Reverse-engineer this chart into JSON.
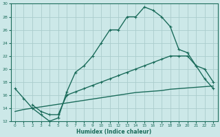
{
  "xlabel": "Humidex (Indice chaleur)",
  "bg_color": "#cce8e8",
  "grid_color": "#aacccc",
  "line_color": "#1a6b5a",
  "xlim": [
    -0.5,
    23.5
  ],
  "ylim": [
    12,
    30
  ],
  "xticks": [
    0,
    1,
    2,
    3,
    4,
    5,
    6,
    7,
    8,
    9,
    10,
    11,
    12,
    13,
    14,
    15,
    16,
    17,
    18,
    19,
    20,
    21,
    22,
    23
  ],
  "yticks": [
    12,
    14,
    16,
    18,
    20,
    22,
    24,
    26,
    28,
    30
  ],
  "line1_x": [
    0,
    1,
    2,
    3,
    4,
    5,
    6,
    7,
    8,
    9,
    10,
    11,
    12,
    13,
    14,
    15,
    16,
    17,
    18,
    19,
    20,
    21,
    22,
    23
  ],
  "line1_y": [
    17,
    15.5,
    14,
    13,
    12,
    12.5,
    16.5,
    19.5,
    20.5,
    22,
    24,
    26,
    26,
    28,
    28,
    29.5,
    29,
    28,
    26.5,
    23,
    22.5,
    20.5,
    18.5,
    17
  ],
  "line2_x": [
    2,
    3,
    4,
    5,
    6,
    7,
    8,
    9,
    10,
    11,
    12,
    13,
    14,
    15,
    16,
    17,
    18,
    19,
    20,
    21,
    22,
    23
  ],
  "line2_y": [
    14.5,
    13.5,
    13,
    13,
    16,
    16.5,
    17,
    17.5,
    18,
    18.5,
    19,
    19.5,
    20,
    20.5,
    21,
    21.5,
    22,
    22,
    22,
    20.5,
    20,
    18
  ],
  "line3_x": [
    0,
    1,
    2,
    3,
    4,
    5,
    6,
    7,
    8,
    9,
    10,
    11,
    12,
    13,
    14,
    15,
    16,
    17,
    18,
    19,
    20,
    21,
    22,
    23
  ],
  "line3_y": [
    13.5,
    13.8,
    14.0,
    14.2,
    14.4,
    14.6,
    14.8,
    15.0,
    15.2,
    15.4,
    15.6,
    15.8,
    16.0,
    16.2,
    16.4,
    16.5,
    16.6,
    16.7,
    16.9,
    17.0,
    17.1,
    17.2,
    17.3,
    17.4
  ]
}
